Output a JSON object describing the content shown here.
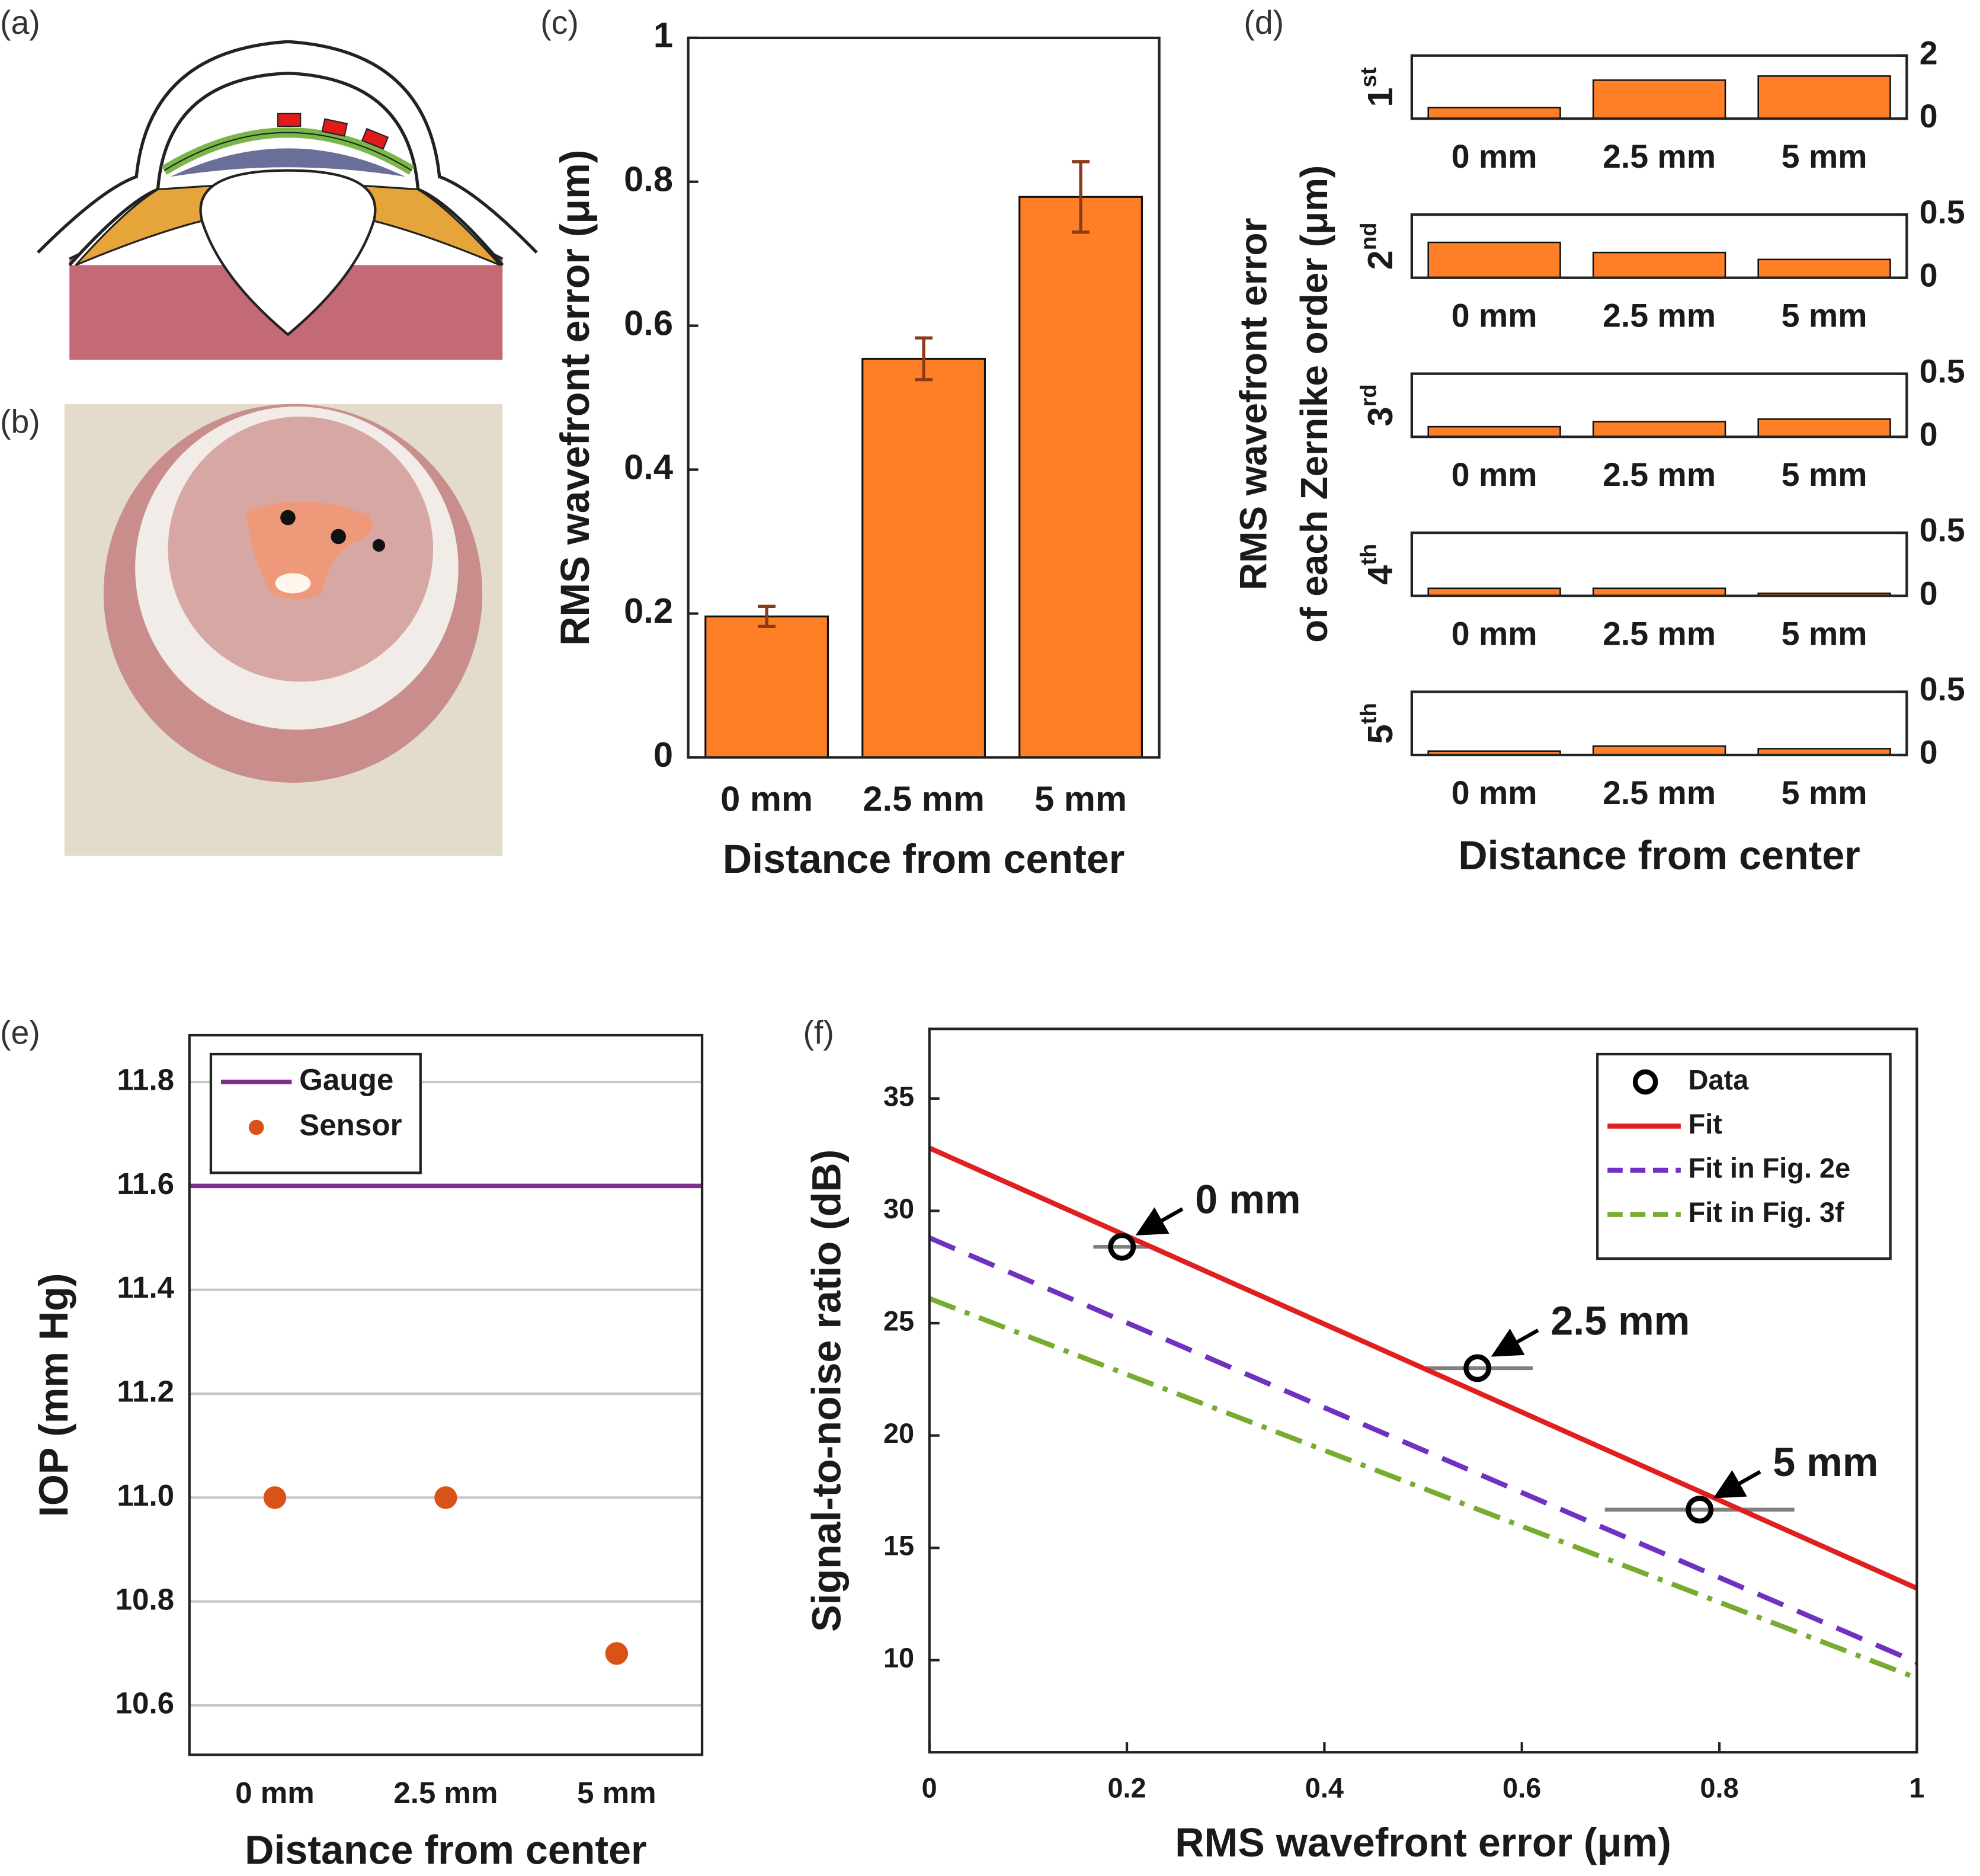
{
  "panel_labels": [
    "(a)",
    "(b)",
    "(c)",
    "(d)",
    "(e)",
    "(f)"
  ],
  "chart_data": [
    {
      "type": "bar",
      "categories": [
        "0 mm",
        "2.5 mm",
        "5 mm"
      ],
      "values": [
        0.196,
        0.554,
        0.779
      ],
      "errors": [
        0.014,
        0.029,
        0.049
      ],
      "color": "#ff7f27",
      "error_color": "#8b3a1a",
      "ylim": [
        0,
        1
      ],
      "yticks": [
        0,
        0.2,
        0.4,
        0.6,
        0.8,
        1
      ],
      "xlabel": "Distance from center",
      "ylabel": "RMS wavefront error (μm)"
    },
    {
      "type": "barpanels",
      "categories": [
        "0 mm",
        "2.5 mm",
        "5 mm"
      ],
      "color": "#ff7f27",
      "ylabel": [
        "RMS wavefront error",
        "of each Zernike order (μm)"
      ],
      "xlabel": "Distance from center",
      "panels": [
        {
          "label": [
            "1",
            "st"
          ],
          "values": [
            0.35,
            1.22,
            1.35
          ],
          "ylim": [
            0,
            2
          ],
          "yticks": [
            0,
            2
          ]
        },
        {
          "label": [
            "2",
            "nd"
          ],
          "values": [
            0.28,
            0.2,
            0.145
          ],
          "ylim": [
            0,
            0.5
          ],
          "yticks": [
            0,
            0.5
          ]
        },
        {
          "label": [
            "3",
            "rd"
          ],
          "values": [
            0.08,
            0.12,
            0.14
          ],
          "ylim": [
            0,
            0.5
          ],
          "yticks": [
            0,
            0.5
          ]
        },
        {
          "label": [
            "4",
            "th"
          ],
          "values": [
            0.06,
            0.06,
            0.02
          ],
          "ylim": [
            0,
            0.5
          ],
          "yticks": [
            0,
            0.5
          ]
        },
        {
          "label": [
            "5",
            "th"
          ],
          "values": [
            0.03,
            0.07,
            0.05
          ],
          "ylim": [
            0,
            0.5
          ],
          "yticks": [
            0,
            0.5
          ]
        }
      ]
    },
    {
      "type": "scatter",
      "categories": [
        "0 mm",
        "2.5 mm",
        "5 mm"
      ],
      "hlines": [
        {
          "name": "Gauge",
          "value": 11.6,
          "color": "#7e2f8e"
        }
      ],
      "series": [
        {
          "name": "Sensor",
          "color": "#d95319",
          "values": [
            11.0,
            11.0,
            10.7
          ]
        }
      ],
      "ylim": [
        10.505,
        11.89
      ],
      "yticks": [
        11.8,
        11.6,
        11.4,
        11.2,
        {
          "value": 11,
          "label": "11.0"
        },
        10.8,
        10.6
      ],
      "grid": true,
      "legend": "top-left",
      "xlabel": "Distance from center",
      "ylabel": "IOP (mm Hg)"
    },
    {
      "type": "line",
      "xlim": [
        0,
        1
      ],
      "xticks": [
        0,
        0.2,
        0.4,
        0.6,
        0.8,
        1
      ],
      "ylim": [
        5.9,
        38.1
      ],
      "yticks": [
        10,
        15,
        20,
        25,
        30,
        35
      ],
      "series": [
        {
          "name": "Data",
          "color": "#000000",
          "style": "marker",
          "x": [
            0.195,
            0.555,
            0.78
          ],
          "values": [
            28.4,
            23.0,
            16.7
          ],
          "xerr": [
            0.029,
            0.056,
            0.096
          ],
          "xerr_color": "#808080"
        },
        {
          "name": "Fit",
          "color": "#e02020",
          "style": "solid",
          "x": [
            0,
            1
          ],
          "values": [
            32.8,
            13.2
          ]
        },
        {
          "name": "Fit in Fig. 2e",
          "color": "#7030c0",
          "style": "dashed",
          "x": [
            0,
            1
          ],
          "values": [
            28.8,
            9.9
          ]
        },
        {
          "name": "Fit in Fig. 3f",
          "color": "#77ac30",
          "style": "dashdot",
          "x": [
            0,
            1
          ],
          "values": [
            26.1,
            9.2
          ]
        }
      ],
      "annotations": [
        "0 mm",
        "2.5 mm",
        "5 mm"
      ],
      "legend": "top-right",
      "xlabel": "RMS wavefront error (μm)",
      "ylabel": "Signal-to-noise ratio (dB)"
    }
  ]
}
